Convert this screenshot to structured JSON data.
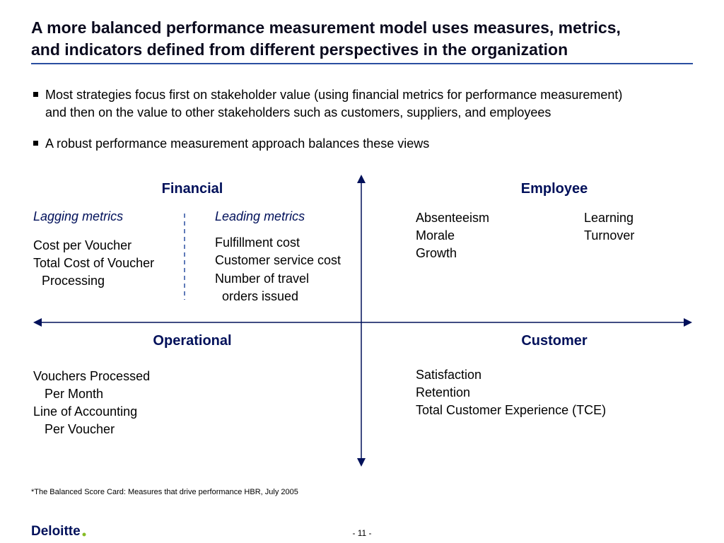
{
  "header": {
    "title_lines": [
      "A more balanced performance measurement model uses measures, metrics,",
      "and indicators defined from different perspectives in the organization"
    ]
  },
  "bullets": [
    {
      "lines": [
        "Most strategies focus first on stakeholder value (using financial metrics for performance measurement)",
        "and then on the value to other stakeholders such as customers, suppliers, and employees"
      ]
    },
    {
      "lines": [
        "A robust performance measurement approach balances these views"
      ]
    }
  ],
  "quadrants": {
    "financial": {
      "title": "Financial",
      "lagging": {
        "label": "Lagging metrics",
        "lines": [
          "Cost per Voucher",
          "Total Cost of Voucher",
          "Processing"
        ]
      },
      "leading": {
        "label": "Leading metrics",
        "lines": [
          "Fulfillment cost",
          "Customer service cost",
          "Number of travel",
          "orders issued"
        ]
      }
    },
    "employee": {
      "title": "Employee",
      "column1": [
        "Absenteeism",
        "Morale",
        "Growth"
      ],
      "column2": [
        "Learning",
        "Turnover"
      ]
    },
    "operational": {
      "title": "Operational",
      "lines": [
        "Vouchers Processed",
        "Per Month",
        "Line of Accounting",
        "Per Voucher"
      ]
    },
    "customer": {
      "title": "Customer",
      "lines": [
        "Satisfaction",
        "Retention",
        "Total Customer Experience (TCE)"
      ]
    }
  },
  "footer": {
    "footnote": "*The Balanced Score Card: Measures that drive performance HBR, July 2005",
    "logo": "Deloitte",
    "page_number": "- 11 -"
  }
}
